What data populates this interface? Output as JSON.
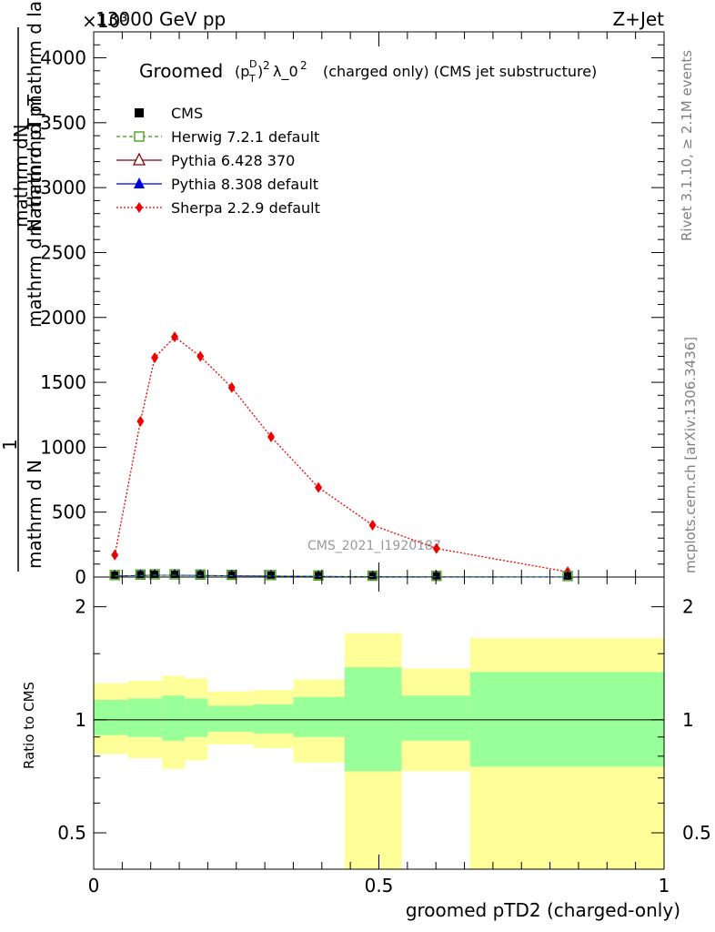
{
  "header": {
    "energy": "13000 GeV pp",
    "process": "Z+Jet",
    "exponent": "×10³",
    "rivet": "Rivet 3.1.10, ≥ 2.1M events",
    "mcplots": "mcplots.cern.ch [arXiv:1306.3436]",
    "watermark": "CMS_2021_I1920187"
  },
  "main_plot": {
    "title_prefix": "Groomed",
    "title_formula": "(pTD)² λ_0²",
    "title_suffix": "(charged only) (CMS jet substructure)",
    "ylabel_top": "mathrm dN",
    "ylabel_mid": "mathrm d pT mathrm d lambda",
    "ylabel_bot": "mathrm d N mathrm d pT",
    "ylabel_frac_num": "1",
    "ylabel_frac_den": "mathrm d N",
    "yticks": [
      "0",
      "500",
      "1000",
      "1500",
      "2000",
      "2500",
      "3000",
      "3500",
      "4000"
    ]
  },
  "legend": [
    {
      "label": "CMS",
      "color": "#000000",
      "marker": "square-filled",
      "line": "none"
    },
    {
      "label": "Herwig 7.2.1 default",
      "color": "#3a9a0a",
      "marker": "square-open",
      "line": "dashed"
    },
    {
      "label": "Pythia 6.428 370",
      "color": "#8b0000",
      "marker": "triangle-open",
      "line": "solid"
    },
    {
      "label": "Pythia 8.308 default",
      "color": "#0000dd",
      "marker": "triangle-filled",
      "line": "solid"
    },
    {
      "label": "Sherpa 2.2.9 default",
      "color": "#ee0000",
      "marker": "diamond-filled",
      "line": "dotted"
    }
  ],
  "ratio_plot": {
    "ylabel": "Ratio to CMS",
    "yticks": [
      "0.5",
      "1",
      "2"
    ],
    "xticks": [
      "0",
      "0.5",
      "1"
    ],
    "xlabel": "groomed pTD2 (charged-only)"
  },
  "chart_data": {
    "type": "line",
    "xlim": [
      0,
      1
    ],
    "ylim": [
      0,
      4200
    ],
    "series": [
      {
        "name": "Sherpa 2.2.9 default",
        "x": [
          0.037,
          0.082,
          0.107,
          0.142,
          0.187,
          0.242,
          0.311,
          0.394,
          0.489,
          0.601,
          0.831
        ],
        "y": [
          170,
          1200,
          1690,
          1850,
          1700,
          1460,
          1080,
          690,
          400,
          220,
          40
        ]
      },
      {
        "name": "CMS",
        "x": [
          0.037,
          0.082,
          0.107,
          0.142,
          0.187,
          0.242,
          0.311,
          0.394,
          0.489,
          0.601,
          0.831
        ],
        "y": [
          8,
          12,
          14,
          14,
          12,
          10,
          8,
          5,
          3,
          2,
          0.5
        ]
      }
    ],
    "ratio": {
      "ylim": [
        0.4,
        2.4
      ],
      "bins": [
        0,
        0.06,
        0.12,
        0.16,
        0.2,
        0.28,
        0.35,
        0.44,
        0.54,
        0.66,
        1.0
      ],
      "band_yellow": [
        [
          0.81,
          1.25
        ],
        [
          0.79,
          1.27
        ],
        [
          0.74,
          1.31
        ],
        [
          0.78,
          1.29
        ],
        [
          0.86,
          1.19
        ],
        [
          0.84,
          1.2
        ],
        [
          0.77,
          1.28
        ],
        [
          0.35,
          1.7
        ],
        [
          0.73,
          1.37
        ],
        [
          0.35,
          1.65
        ]
      ],
      "band_green": [
        [
          0.91,
          1.13
        ],
        [
          0.9,
          1.14
        ],
        [
          0.88,
          1.16
        ],
        [
          0.9,
          1.14
        ],
        [
          0.93,
          1.09
        ],
        [
          0.92,
          1.1
        ],
        [
          0.9,
          1.15
        ],
        [
          0.73,
          1.38
        ],
        [
          0.88,
          1.16
        ],
        [
          0.75,
          1.34
        ]
      ]
    }
  }
}
